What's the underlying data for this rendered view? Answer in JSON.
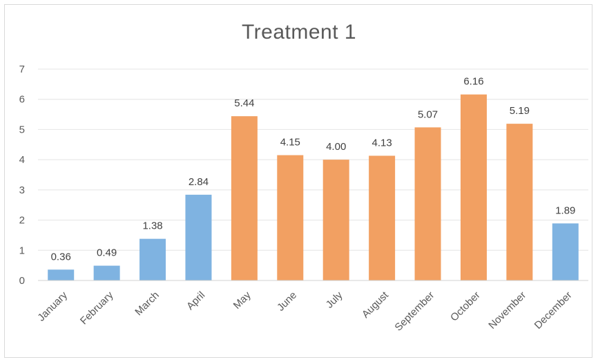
{
  "chart_data": {
    "type": "bar",
    "title": "Treatment 1",
    "xlabel": "",
    "ylabel": "",
    "categories": [
      "January",
      "February",
      "March",
      "April",
      "May",
      "June",
      "July",
      "August",
      "September",
      "October",
      "November",
      "December"
    ],
    "values": [
      0.36,
      0.49,
      1.38,
      2.84,
      5.44,
      4.15,
      4.0,
      4.13,
      5.07,
      6.16,
      5.19,
      1.89
    ],
    "data_labels": [
      "0.36",
      "0.49",
      "1.38",
      "2.84",
      "5.44",
      "4.15",
      "4.00",
      "4.13",
      "5.07",
      "6.16",
      "5.19",
      "1.89"
    ],
    "bar_colors": [
      "#7fb3e1",
      "#7fb3e1",
      "#7fb3e1",
      "#7fb3e1",
      "#f2a062",
      "#f2a062",
      "#f2a062",
      "#f2a062",
      "#f2a062",
      "#f2a062",
      "#f2a062",
      "#7fb3e1"
    ],
    "ylim": [
      0,
      7
    ],
    "yticks": [
      "0",
      "1",
      "2",
      "3",
      "4",
      "5",
      "6",
      "7"
    ],
    "grid": true,
    "legend": "none"
  }
}
